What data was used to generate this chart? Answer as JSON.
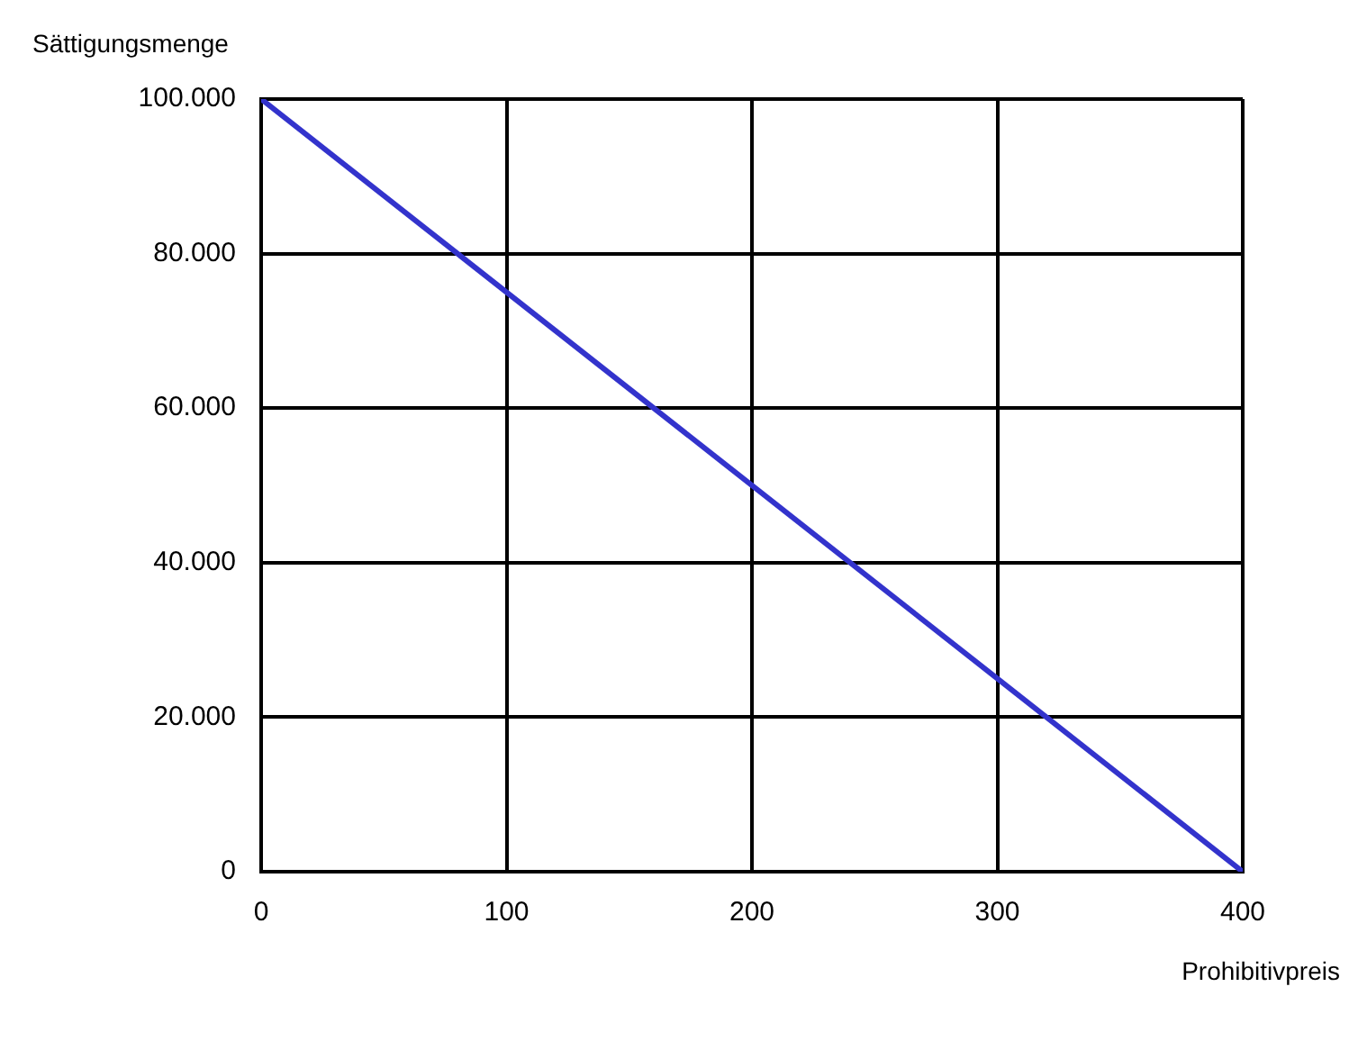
{
  "chart_data": {
    "type": "line",
    "xlabel": "Prohibitivpreis",
    "ylabel": "Sättigungsmenge",
    "x": [
      0,
      400
    ],
    "series": [
      {
        "color": "#3333cc",
        "values": [
          100000,
          0
        ]
      }
    ],
    "xlim": [
      0,
      400
    ],
    "xticks": [
      0,
      100,
      200,
      300,
      400
    ],
    "ylim": [
      0,
      100000
    ],
    "yticks": [
      {
        "value": 0,
        "label": "0"
      },
      {
        "value": 20000,
        "label": "20.000"
      },
      {
        "value": 40000,
        "label": "40.000"
      },
      {
        "value": 60000,
        "label": "60.000"
      },
      {
        "value": 80000,
        "label": "80.000"
      },
      {
        "value": 100000,
        "label": "100.000"
      }
    ],
    "grid": true,
    "legend": false,
    "marker": "none",
    "line_style": "solid"
  }
}
